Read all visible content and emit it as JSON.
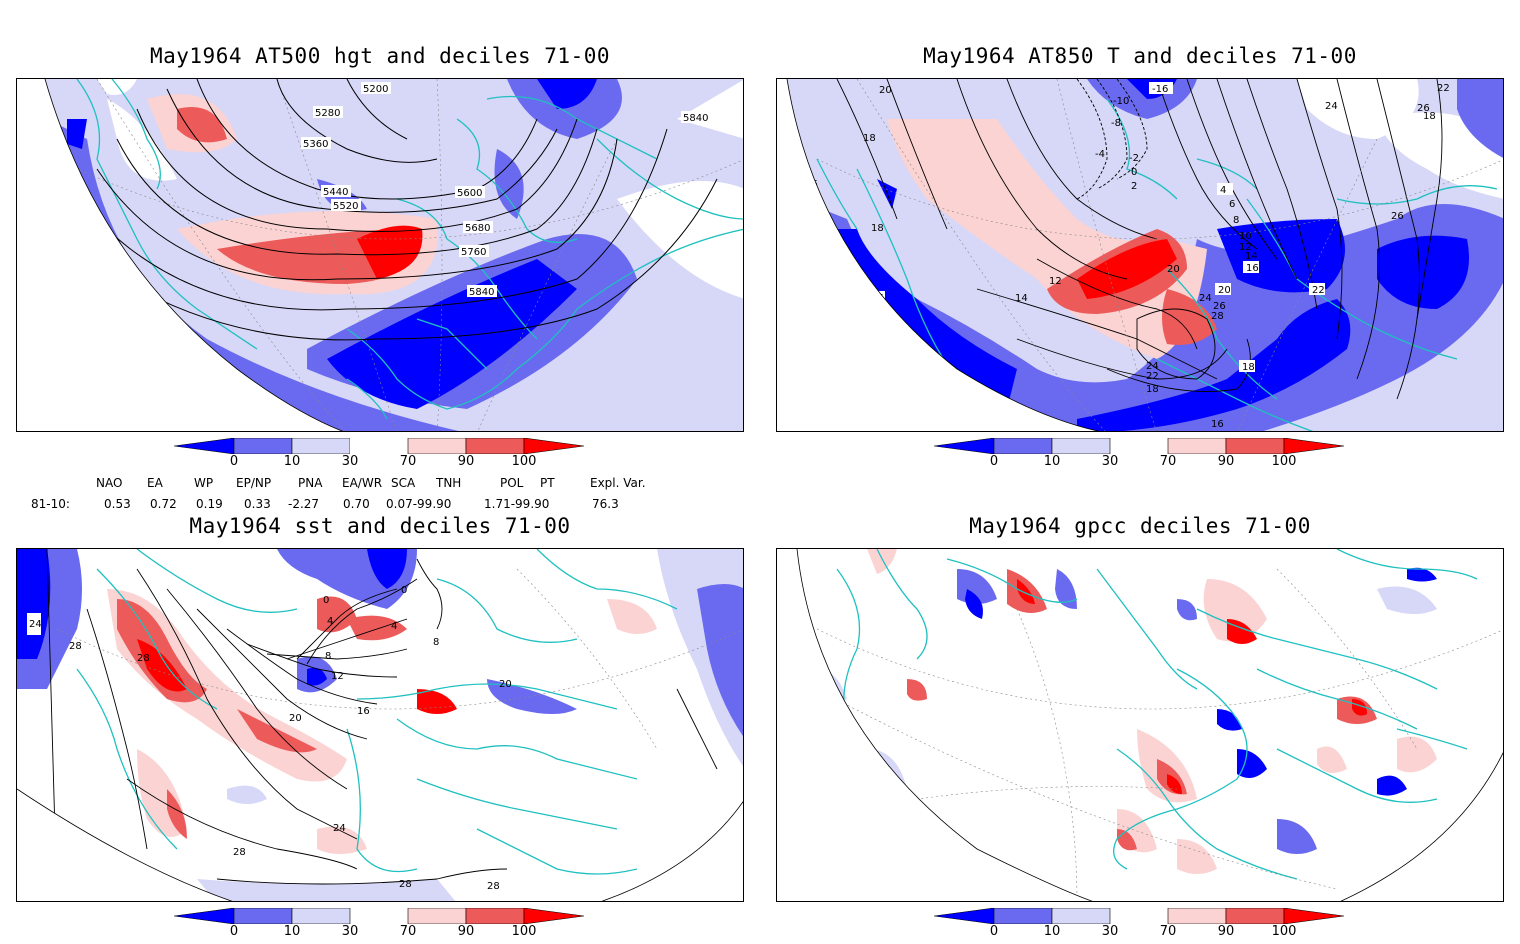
{
  "panels": [
    {
      "id": "p1",
      "title": "May1964 AT500 hgt and deciles 71-00",
      "contour_labels": [
        "5200",
        "5280",
        "5360",
        "5440",
        "5520",
        "5600",
        "5680",
        "5760",
        "5840",
        "5840"
      ]
    },
    {
      "id": "p2",
      "title": "May1964 AT850 T and deciles 71-00",
      "contour_labels": [
        "20",
        "18",
        "16",
        "18",
        "16",
        "16",
        "14",
        "12",
        "20",
        "24",
        "26",
        "28",
        "24",
        "22",
        "18",
        "-16",
        "-10",
        "-8",
        "-4",
        "-2",
        "0",
        "2",
        "4",
        "6",
        "8",
        "10",
        "12",
        "14",
        "16",
        "18",
        "20",
        "22",
        "24",
        "26",
        "22",
        "26",
        "18",
        "16"
      ]
    },
    {
      "id": "p3",
      "title": "May1964 sst and deciles 71-00",
      "contour_labels": [
        "24",
        "28",
        "28",
        "0",
        "4",
        "8",
        "12",
        "16",
        "20",
        "24",
        "28",
        "28",
        "28",
        "0",
        "4",
        "8",
        "20"
      ]
    },
    {
      "id": "p4",
      "title": "May1964 gpcc deciles 71-00",
      "contour_labels": []
    }
  ],
  "colorbar": {
    "labels": [
      "0",
      "10",
      "30",
      "70",
      "90",
      "100"
    ],
    "colors": [
      "#0000ff",
      "#6a6af0",
      "#d7d7f7",
      "#ffffff",
      "#fbd3d3",
      "#ec5a5a",
      "#ff0000"
    ]
  },
  "indices": {
    "headers": [
      "NAO",
      "EA",
      "WP",
      "EP/NP",
      "PNA",
      "EA/WR",
      "SCA",
      "TNH",
      "POL",
      "PT",
      "Expl. Var."
    ],
    "row_label": "81-10:",
    "values": [
      "0.53",
      "0.72",
      "0.19",
      "0.33",
      "-2.27",
      "0.70",
      "0.07-99.90",
      "1.71-99.90",
      "76.3"
    ]
  },
  "colors": {
    "coast": "#20c0c0",
    "contour": "#000000",
    "grid": "#888888"
  }
}
